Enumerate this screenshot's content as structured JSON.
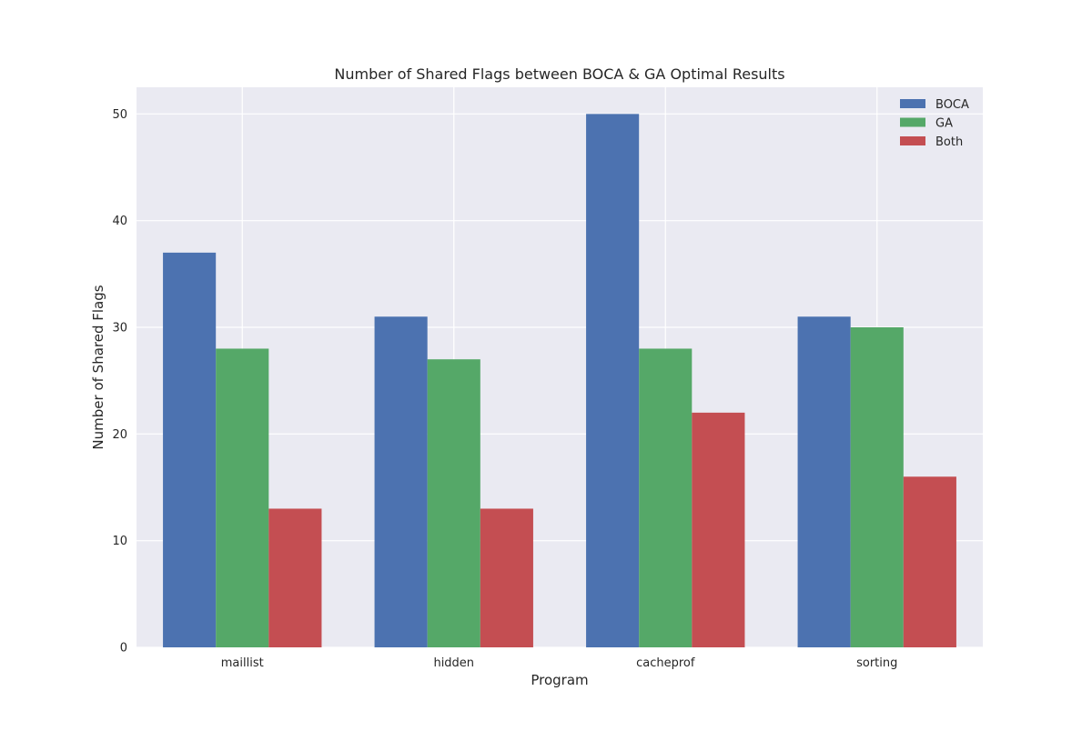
{
  "chart_data": {
    "type": "bar",
    "title": "Number of Shared Flags between BOCA & GA Optimal Results",
    "xlabel": "Program",
    "ylabel": "Number of Shared Flags",
    "categories": [
      "maillist",
      "hidden",
      "cacheprof",
      "sorting"
    ],
    "series": [
      {
        "name": "BOCA",
        "values": [
          37,
          31,
          50,
          31
        ],
        "color": "#4c72b0"
      },
      {
        "name": "GA",
        "values": [
          28,
          27,
          28,
          30
        ],
        "color": "#55a868"
      },
      {
        "name": "Both",
        "values": [
          13,
          13,
          22,
          16
        ],
        "color": "#c44e52"
      }
    ],
    "ylim": [
      0,
      52.5
    ],
    "yticks": [
      0,
      10,
      20,
      30,
      40,
      50
    ],
    "grid": true,
    "legend_position": "top-right",
    "background": "#eaeaf2",
    "grid_color": "#ffffff"
  }
}
